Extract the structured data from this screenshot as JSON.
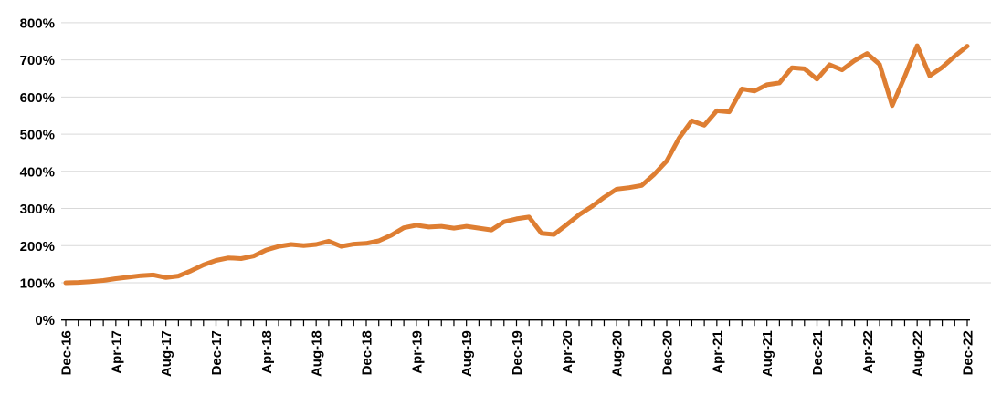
{
  "chart_data": {
    "type": "line",
    "x": [
      "Dec-16",
      "Jan-17",
      "Feb-17",
      "Mar-17",
      "Apr-17",
      "May-17",
      "Jun-17",
      "Jul-17",
      "Aug-17",
      "Sep-17",
      "Oct-17",
      "Nov-17",
      "Dec-17",
      "Jan-18",
      "Feb-18",
      "Mar-18",
      "Apr-18",
      "May-18",
      "Jun-18",
      "Jul-18",
      "Aug-18",
      "Sep-18",
      "Oct-18",
      "Nov-18",
      "Dec-18",
      "Jan-19",
      "Feb-19",
      "Mar-19",
      "Apr-19",
      "May-19",
      "Jun-19",
      "Jul-19",
      "Aug-19",
      "Sep-19",
      "Oct-19",
      "Nov-19",
      "Dec-19",
      "Jan-20",
      "Feb-20",
      "Mar-20",
      "Apr-20",
      "May-20",
      "Jun-20",
      "Jul-20",
      "Aug-20",
      "Sep-20",
      "Oct-20",
      "Nov-20",
      "Dec-20",
      "Jan-21",
      "Feb-21",
      "Mar-21",
      "Apr-21",
      "May-21",
      "Jun-21",
      "Jul-21",
      "Aug-21",
      "Sep-21",
      "Oct-21",
      "Nov-21",
      "Dec-21",
      "Jan-22",
      "Feb-22",
      "Mar-22",
      "Apr-22",
      "May-22",
      "Jun-22",
      "Jul-22",
      "Aug-22",
      "Sep-22",
      "Oct-22",
      "Nov-22",
      "Dec-22"
    ],
    "values": [
      100,
      101,
      103,
      106,
      111,
      115,
      119,
      121,
      114,
      118,
      132,
      148,
      160,
      167,
      165,
      172,
      188,
      198,
      203,
      200,
      203,
      212,
      198,
      204,
      206,
      213,
      228,
      248,
      255,
      250,
      252,
      247,
      252,
      247,
      242,
      264,
      272,
      277,
      233,
      230,
      256,
      283,
      305,
      330,
      352,
      356,
      362,
      392,
      428,
      490,
      536,
      524,
      563,
      560,
      622,
      616,
      633,
      638,
      679,
      676,
      648,
      687,
      673,
      698,
      717,
      688,
      577,
      655,
      738,
      657,
      680,
      710,
      737
    ],
    "y_axis": {
      "ticks": [
        "0%",
        "100%",
        "200%",
        "300%",
        "400%",
        "500%",
        "600%",
        "700%",
        "800%"
      ],
      "tick_values": [
        0,
        100,
        200,
        300,
        400,
        500,
        600,
        700,
        800
      ],
      "min": 0,
      "max": 800,
      "unit": "%"
    },
    "x_axis": {
      "tick_every_months": 1,
      "label_every_months": 4,
      "labels_shown": [
        "Dec-16",
        "Apr-17",
        "Aug-17",
        "Dec-17",
        "Apr-18",
        "Aug-18",
        "Dec-18",
        "Apr-19",
        "Aug-19",
        "Dec-19",
        "Apr-20",
        "Aug-20",
        "Dec-20",
        "Apr-21",
        "Aug-21",
        "Dec-21",
        "Apr-22",
        "Aug-22",
        "Dec-22"
      ],
      "label_rotation_degrees": -90
    },
    "grid": "horizontal",
    "legend": "none",
    "colors": {
      "line": "#DE7E32",
      "gridline": "#D9D9D9",
      "axis": "#000000",
      "labels": "#000000",
      "background": "#FFFFFF"
    }
  }
}
